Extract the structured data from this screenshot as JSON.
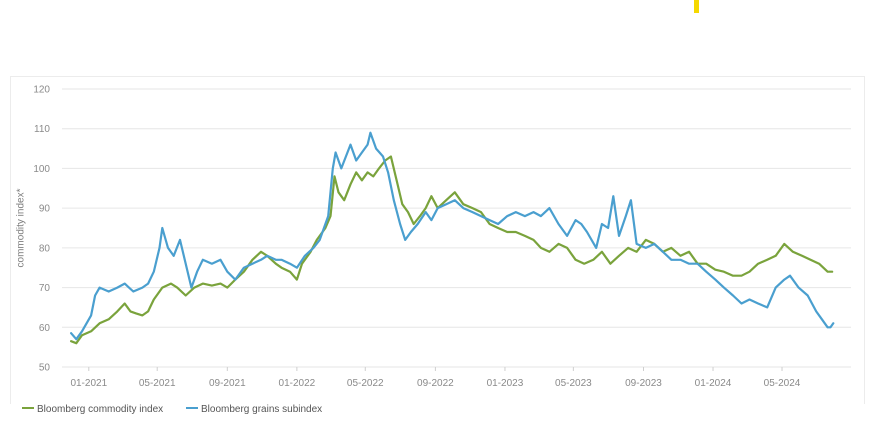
{
  "colors": {
    "accent": "#f5d800",
    "commodity": "#7aa33c",
    "grains": "#4a9fcf",
    "grid": "#e6e6e6"
  },
  "chart_data": {
    "type": "line",
    "title": "",
    "xlabel": "",
    "ylabel": "commodity index*",
    "ylim": [
      50,
      120
    ],
    "y_ticks": [
      50,
      60,
      70,
      80,
      90,
      100,
      110,
      120
    ],
    "x_range": [
      "2020-11-15",
      "2024-08-30"
    ],
    "x_ticks": [
      {
        "date": "2021-01-01",
        "label": "01-2021"
      },
      {
        "date": "2021-05-01",
        "label": "05-2021"
      },
      {
        "date": "2021-09-01",
        "label": "09-2021"
      },
      {
        "date": "2022-01-01",
        "label": "01-2022"
      },
      {
        "date": "2022-05-01",
        "label": "05-2022"
      },
      {
        "date": "2022-09-01",
        "label": "09-2022"
      },
      {
        "date": "2023-01-01",
        "label": "01-2023"
      },
      {
        "date": "2023-05-01",
        "label": "05-2023"
      },
      {
        "date": "2023-09-01",
        "label": "09-2023"
      },
      {
        "date": "2024-01-01",
        "label": "01-2024"
      },
      {
        "date": "2024-05-01",
        "label": "05-2024"
      }
    ],
    "grid": true,
    "legend": "bottom-left",
    "series": [
      {
        "name": "Bloomberg commodity index",
        "color": "#7aa33c",
        "points": [
          [
            "2020-12-01",
            56.5
          ],
          [
            "2020-12-10",
            56
          ],
          [
            "2020-12-20",
            58
          ],
          [
            "2021-01-05",
            59
          ],
          [
            "2021-01-20",
            61
          ],
          [
            "2021-02-05",
            62
          ],
          [
            "2021-02-20",
            64
          ],
          [
            "2021-03-05",
            66
          ],
          [
            "2021-03-15",
            64
          ],
          [
            "2021-03-25",
            63.5
          ],
          [
            "2021-04-05",
            63
          ],
          [
            "2021-04-15",
            64
          ],
          [
            "2021-04-25",
            67
          ],
          [
            "2021-05-10",
            70
          ],
          [
            "2021-05-25",
            71
          ],
          [
            "2021-06-05",
            70
          ],
          [
            "2021-06-20",
            68
          ],
          [
            "2021-07-05",
            70
          ],
          [
            "2021-07-20",
            71
          ],
          [
            "2021-08-05",
            70.5
          ],
          [
            "2021-08-20",
            71
          ],
          [
            "2021-09-01",
            70
          ],
          [
            "2021-09-15",
            72
          ],
          [
            "2021-09-30",
            74
          ],
          [
            "2021-10-15",
            77
          ],
          [
            "2021-10-30",
            79
          ],
          [
            "2021-11-10",
            78
          ],
          [
            "2021-11-25",
            76
          ],
          [
            "2021-12-05",
            75
          ],
          [
            "2021-12-20",
            74
          ],
          [
            "2022-01-01",
            72
          ],
          [
            "2022-01-10",
            76
          ],
          [
            "2022-01-25",
            79
          ],
          [
            "2022-02-05",
            82
          ],
          [
            "2022-02-20",
            85
          ],
          [
            "2022-03-01",
            88
          ],
          [
            "2022-03-08",
            98
          ],
          [
            "2022-03-15",
            94
          ],
          [
            "2022-03-25",
            92
          ],
          [
            "2022-04-05",
            96
          ],
          [
            "2022-04-15",
            99
          ],
          [
            "2022-04-25",
            97
          ],
          [
            "2022-05-05",
            99
          ],
          [
            "2022-05-15",
            98
          ],
          [
            "2022-05-25",
            100
          ],
          [
            "2022-06-05",
            102
          ],
          [
            "2022-06-15",
            103
          ],
          [
            "2022-06-25",
            97
          ],
          [
            "2022-07-05",
            91
          ],
          [
            "2022-07-15",
            89
          ],
          [
            "2022-07-25",
            86
          ],
          [
            "2022-08-05",
            88
          ],
          [
            "2022-08-15",
            90
          ],
          [
            "2022-08-25",
            93
          ],
          [
            "2022-09-05",
            90
          ],
          [
            "2022-09-20",
            92
          ],
          [
            "2022-10-05",
            94
          ],
          [
            "2022-10-20",
            91
          ],
          [
            "2022-11-05",
            90
          ],
          [
            "2022-11-20",
            89
          ],
          [
            "2022-12-05",
            86
          ],
          [
            "2022-12-20",
            85
          ],
          [
            "2023-01-05",
            84
          ],
          [
            "2023-01-20",
            84
          ],
          [
            "2023-02-05",
            83
          ],
          [
            "2023-02-20",
            82
          ],
          [
            "2023-03-05",
            80
          ],
          [
            "2023-03-20",
            79
          ],
          [
            "2023-04-05",
            81
          ],
          [
            "2023-04-20",
            80
          ],
          [
            "2023-05-05",
            77
          ],
          [
            "2023-05-20",
            76
          ],
          [
            "2023-06-05",
            77
          ],
          [
            "2023-06-20",
            79
          ],
          [
            "2023-07-05",
            76
          ],
          [
            "2023-07-20",
            78
          ],
          [
            "2023-08-05",
            80
          ],
          [
            "2023-08-20",
            79
          ],
          [
            "2023-09-05",
            82
          ],
          [
            "2023-09-20",
            81
          ],
          [
            "2023-10-05",
            79
          ],
          [
            "2023-10-20",
            80
          ],
          [
            "2023-11-05",
            78
          ],
          [
            "2023-11-20",
            79
          ],
          [
            "2023-12-05",
            76
          ],
          [
            "2023-12-20",
            76
          ],
          [
            "2024-01-05",
            74.5
          ],
          [
            "2024-01-20",
            74
          ],
          [
            "2024-02-05",
            73
          ],
          [
            "2024-02-20",
            73
          ],
          [
            "2024-03-05",
            74
          ],
          [
            "2024-03-20",
            76
          ],
          [
            "2024-04-05",
            77
          ],
          [
            "2024-04-20",
            78
          ],
          [
            "2024-05-05",
            81
          ],
          [
            "2024-05-20",
            79
          ],
          [
            "2024-06-05",
            78
          ],
          [
            "2024-06-20",
            77
          ],
          [
            "2024-07-05",
            76
          ],
          [
            "2024-07-20",
            74
          ],
          [
            "2024-07-28",
            74
          ]
        ]
      },
      {
        "name": "Bloomberg grains subindex",
        "color": "#4a9fcf",
        "points": [
          [
            "2020-12-01",
            58.5
          ],
          [
            "2020-12-10",
            57
          ],
          [
            "2020-12-20",
            59
          ],
          [
            "2021-01-05",
            63
          ],
          [
            "2021-01-12",
            68
          ],
          [
            "2021-01-20",
            70
          ],
          [
            "2021-02-05",
            69
          ],
          [
            "2021-02-20",
            70
          ],
          [
            "2021-03-05",
            71
          ],
          [
            "2021-03-20",
            69
          ],
          [
            "2021-04-05",
            70
          ],
          [
            "2021-04-15",
            71
          ],
          [
            "2021-04-25",
            74
          ],
          [
            "2021-05-05",
            80
          ],
          [
            "2021-05-10",
            85
          ],
          [
            "2021-05-20",
            80
          ],
          [
            "2021-05-30",
            78
          ],
          [
            "2021-06-10",
            82
          ],
          [
            "2021-06-20",
            76
          ],
          [
            "2021-06-30",
            70
          ],
          [
            "2021-07-10",
            74
          ],
          [
            "2021-07-20",
            77
          ],
          [
            "2021-08-05",
            76
          ],
          [
            "2021-08-20",
            77
          ],
          [
            "2021-09-01",
            74
          ],
          [
            "2021-09-15",
            72
          ],
          [
            "2021-09-30",
            75
          ],
          [
            "2021-10-15",
            76
          ],
          [
            "2021-10-30",
            77
          ],
          [
            "2021-11-10",
            78
          ],
          [
            "2021-11-25",
            77
          ],
          [
            "2021-12-05",
            77
          ],
          [
            "2021-12-20",
            76
          ],
          [
            "2022-01-01",
            75
          ],
          [
            "2022-01-15",
            78
          ],
          [
            "2022-01-30",
            80
          ],
          [
            "2022-02-10",
            82
          ],
          [
            "2022-02-25",
            88
          ],
          [
            "2022-03-05",
            100
          ],
          [
            "2022-03-10",
            104
          ],
          [
            "2022-03-20",
            100
          ],
          [
            "2022-04-05",
            106
          ],
          [
            "2022-04-15",
            102
          ],
          [
            "2022-04-25",
            104
          ],
          [
            "2022-05-05",
            106
          ],
          [
            "2022-05-10",
            109
          ],
          [
            "2022-05-20",
            105
          ],
          [
            "2022-06-01",
            103
          ],
          [
            "2022-06-10",
            99
          ],
          [
            "2022-06-20",
            92
          ],
          [
            "2022-07-01",
            86
          ],
          [
            "2022-07-10",
            82
          ],
          [
            "2022-07-20",
            84
          ],
          [
            "2022-08-01",
            86
          ],
          [
            "2022-08-15",
            89
          ],
          [
            "2022-08-25",
            87
          ],
          [
            "2022-09-05",
            90
          ],
          [
            "2022-09-20",
            91
          ],
          [
            "2022-10-05",
            92
          ],
          [
            "2022-10-20",
            90
          ],
          [
            "2022-11-05",
            89
          ],
          [
            "2022-11-20",
            88
          ],
          [
            "2022-12-05",
            87
          ],
          [
            "2022-12-20",
            86
          ],
          [
            "2023-01-05",
            88
          ],
          [
            "2023-01-20",
            89
          ],
          [
            "2023-02-05",
            88
          ],
          [
            "2023-02-20",
            89
          ],
          [
            "2023-03-05",
            88
          ],
          [
            "2023-03-20",
            90
          ],
          [
            "2023-04-05",
            86
          ],
          [
            "2023-04-20",
            83
          ],
          [
            "2023-05-05",
            87
          ],
          [
            "2023-05-15",
            86
          ],
          [
            "2023-05-25",
            84
          ],
          [
            "2023-06-10",
            80
          ],
          [
            "2023-06-20",
            86
          ],
          [
            "2023-07-01",
            85
          ],
          [
            "2023-07-10",
            93
          ],
          [
            "2023-07-20",
            83
          ],
          [
            "2023-08-01",
            88
          ],
          [
            "2023-08-10",
            92
          ],
          [
            "2023-08-20",
            81
          ],
          [
            "2023-09-05",
            80
          ],
          [
            "2023-09-20",
            81
          ],
          [
            "2023-10-05",
            79
          ],
          [
            "2023-10-20",
            77
          ],
          [
            "2023-11-05",
            77
          ],
          [
            "2023-11-20",
            76
          ],
          [
            "2023-12-05",
            76
          ],
          [
            "2023-12-20",
            74
          ],
          [
            "2024-01-05",
            72
          ],
          [
            "2024-01-20",
            70
          ],
          [
            "2024-02-05",
            68
          ],
          [
            "2024-02-20",
            66
          ],
          [
            "2024-03-05",
            67
          ],
          [
            "2024-03-20",
            66
          ],
          [
            "2024-04-05",
            65
          ],
          [
            "2024-04-20",
            70
          ],
          [
            "2024-05-05",
            72
          ],
          [
            "2024-05-15",
            73
          ],
          [
            "2024-05-30",
            70
          ],
          [
            "2024-06-15",
            68
          ],
          [
            "2024-06-30",
            64
          ],
          [
            "2024-07-10",
            62
          ],
          [
            "2024-07-20",
            60
          ],
          [
            "2024-07-25",
            60
          ],
          [
            "2024-07-30",
            61
          ]
        ]
      }
    ]
  }
}
